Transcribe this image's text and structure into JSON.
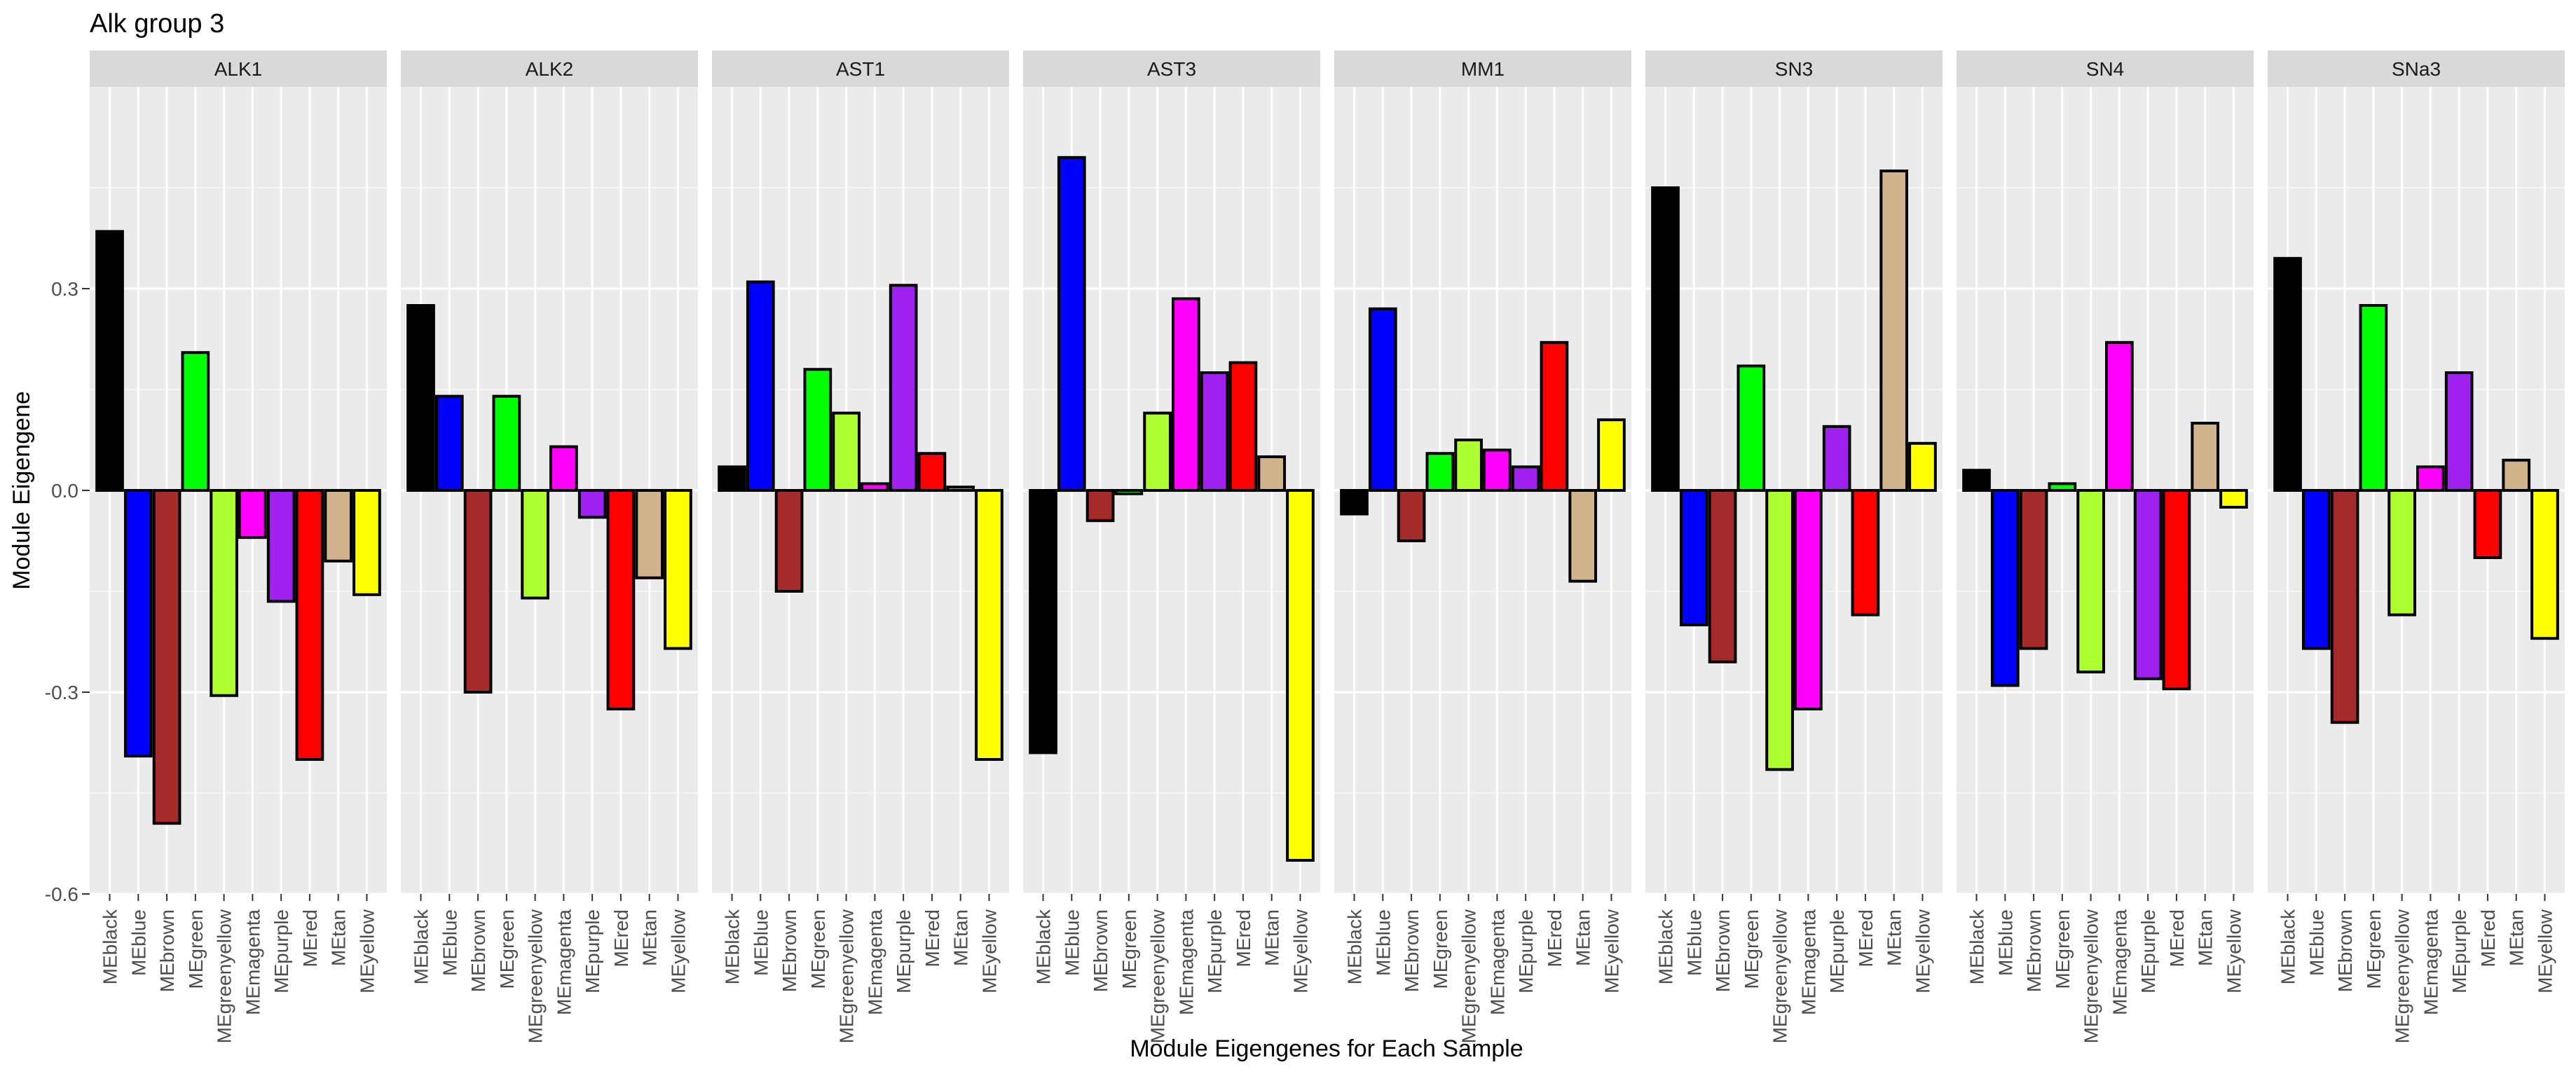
{
  "chart_data": {
    "type": "bar",
    "title": "Alk group 3",
    "xlabel": "Module Eigengenes for Each Sample",
    "ylabel": "Module Eigengene",
    "ylim": [
      -0.6,
      0.6
    ],
    "yticks": [
      0.3,
      0.0,
      -0.3,
      -0.6
    ],
    "ytick_labels": [
      "0.3",
      "0.0",
      "-0.3",
      "-0.6"
    ],
    "grid": true,
    "categories": [
      "MEblack",
      "MEblue",
      "MEbrown",
      "MEgreen",
      "MEgreenyellow",
      "MEmagenta",
      "MEpurple",
      "MEred",
      "MEtan",
      "MEyellow"
    ],
    "bar_colors": [
      "#000000",
      "#0000FF",
      "#A52A2A",
      "#00FF00",
      "#ADFF2F",
      "#FF00FF",
      "#A020F0",
      "#FF0000",
      "#D2B48C",
      "#FFFF00"
    ],
    "facets": [
      {
        "name": "ALK1",
        "values": [
          0.385,
          -0.395,
          -0.495,
          0.205,
          -0.305,
          -0.07,
          -0.165,
          -0.4,
          -0.105,
          -0.155
        ]
      },
      {
        "name": "ALK2",
        "values": [
          0.275,
          0.14,
          -0.3,
          0.14,
          -0.16,
          0.065,
          -0.04,
          -0.325,
          -0.13,
          -0.235
        ]
      },
      {
        "name": "AST1",
        "values": [
          0.035,
          0.31,
          -0.15,
          0.18,
          0.115,
          0.01,
          0.305,
          0.055,
          0.005,
          -0.4
        ]
      },
      {
        "name": "AST3",
        "values": [
          -0.39,
          0.495,
          -0.045,
          -0.005,
          0.115,
          0.285,
          0.175,
          0.19,
          0.05,
          -0.55
        ]
      },
      {
        "name": "MM1",
        "values": [
          -0.035,
          0.27,
          -0.075,
          0.055,
          0.075,
          0.06,
          0.035,
          0.22,
          -0.135,
          0.105
        ]
      },
      {
        "name": "SN3",
        "values": [
          0.45,
          -0.2,
          -0.255,
          0.185,
          -0.415,
          -0.325,
          0.095,
          -0.185,
          0.475,
          0.07
        ]
      },
      {
        "name": "SN4",
        "values": [
          0.03,
          -0.29,
          -0.235,
          0.01,
          -0.27,
          0.22,
          -0.28,
          -0.295,
          0.1,
          -0.025
        ]
      },
      {
        "name": "SNa3",
        "values": [
          0.345,
          -0.235,
          -0.345,
          0.275,
          -0.185,
          0.035,
          0.175,
          -0.1,
          0.045,
          -0.22
        ]
      }
    ]
  }
}
